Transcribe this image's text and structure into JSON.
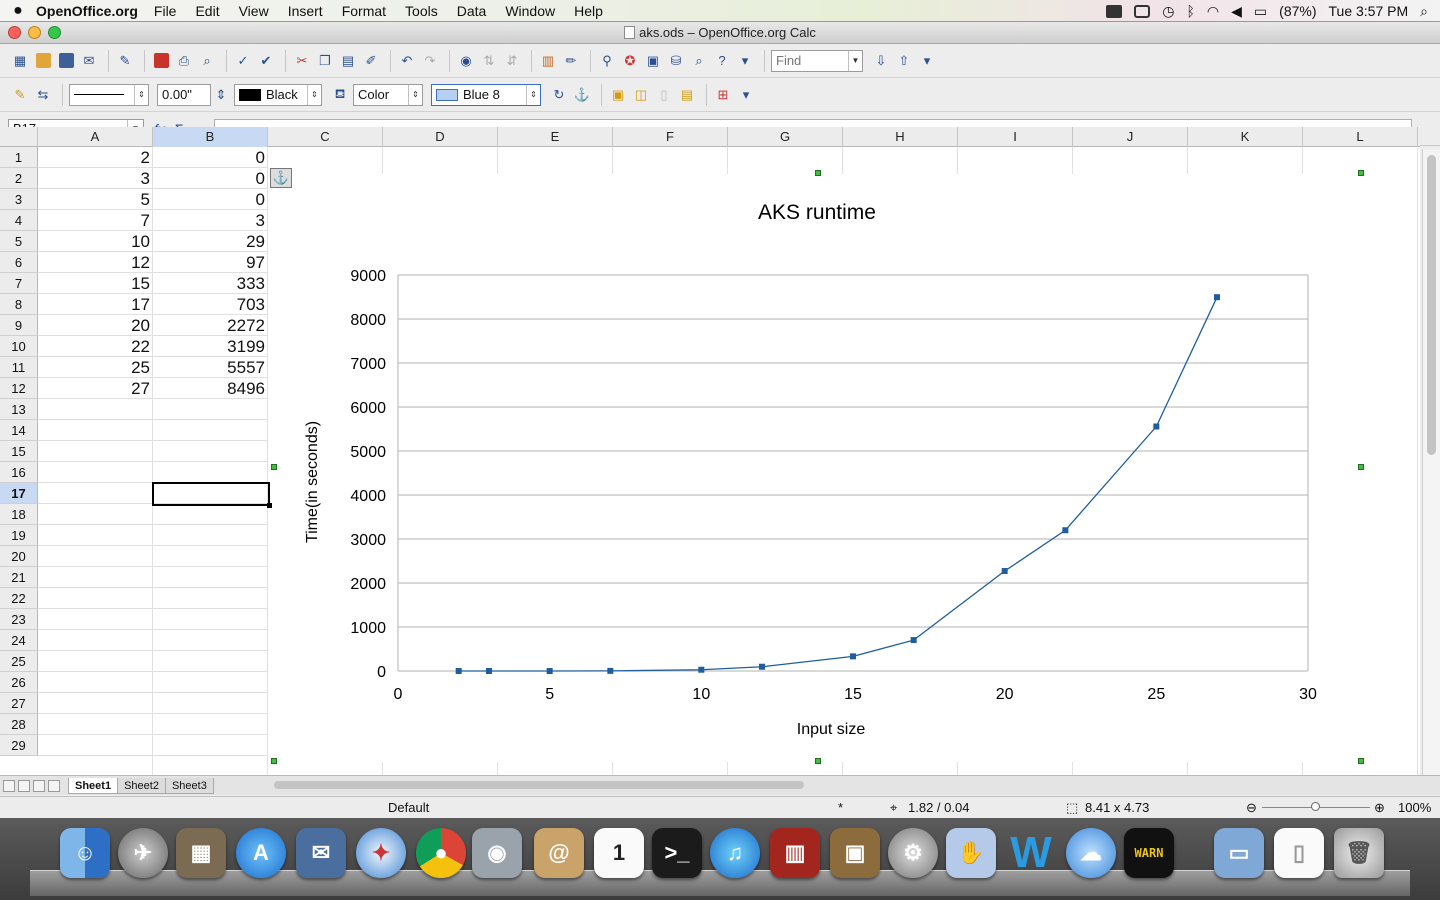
{
  "menubar": {
    "app_name": "OpenOffice.org",
    "items": [
      "File",
      "Edit",
      "View",
      "Insert",
      "Format",
      "Tools",
      "Data",
      "Window",
      "Help"
    ],
    "battery": "(87%)",
    "clock": "Tue 3:57 PM"
  },
  "window": {
    "title": "aks.ods – OpenOffice.org Calc"
  },
  "toolbar": {
    "find_placeholder": "Find"
  },
  "drawing_toolbar": {
    "line_width": "0.00\"",
    "line_color": "Black",
    "area_style": "Color",
    "area_color": "Blue 8"
  },
  "formula_bar": {
    "name_box": "B17",
    "input_value": ""
  },
  "sheet": {
    "columns": [
      "A",
      "B",
      "C",
      "D",
      "E",
      "F",
      "G",
      "H",
      "I",
      "J",
      "K",
      "L"
    ],
    "selected_column": "B",
    "selected_row": 17,
    "rows": [
      "1",
      "2",
      "3",
      "4",
      "5",
      "6",
      "7",
      "8",
      "9",
      "10",
      "11",
      "12",
      "13",
      "14",
      "15",
      "16",
      "17",
      "18",
      "19",
      "20",
      "21",
      "22",
      "23",
      "24",
      "25",
      "26",
      "27",
      "28",
      "29"
    ],
    "data": [
      {
        "a": "2",
        "b": "0"
      },
      {
        "a": "3",
        "b": "0"
      },
      {
        "a": "5",
        "b": "0"
      },
      {
        "a": "7",
        "b": "3"
      },
      {
        "a": "10",
        "b": "29"
      },
      {
        "a": "12",
        "b": "97"
      },
      {
        "a": "15",
        "b": "333"
      },
      {
        "a": "17",
        "b": "703"
      },
      {
        "a": "20",
        "b": "2272"
      },
      {
        "a": "22",
        "b": "3199"
      },
      {
        "a": "25",
        "b": "5557"
      },
      {
        "a": "27",
        "b": "8496"
      }
    ]
  },
  "chart_data": {
    "type": "line",
    "title": "AKS runtime",
    "xlabel": "Input size",
    "ylabel": "Time(in seconds)",
    "xlim": [
      0,
      30
    ],
    "ylim": [
      0,
      9000
    ],
    "xticks": [
      0,
      5,
      10,
      15,
      20,
      25,
      30
    ],
    "yticks": [
      0,
      1000,
      2000,
      3000,
      4000,
      5000,
      6000,
      7000,
      8000,
      9000
    ],
    "grid": "horizontal",
    "series": [
      {
        "x": [
          2,
          3,
          5,
          7,
          10,
          12,
          15,
          17,
          20,
          22,
          25,
          27
        ],
        "y": [
          0,
          0,
          0,
          3,
          29,
          97,
          333,
          703,
          2272,
          3199,
          5557,
          8496
        ],
        "color": "#1f5e9e"
      }
    ]
  },
  "sheet_tabs": [
    "Sheet1",
    "Sheet2",
    "Sheet3"
  ],
  "statusbar": {
    "page_style": "Default",
    "modified": "*",
    "position": "1.82 / 0.04",
    "size": "8.41 x 4.73",
    "zoom": "100%"
  }
}
